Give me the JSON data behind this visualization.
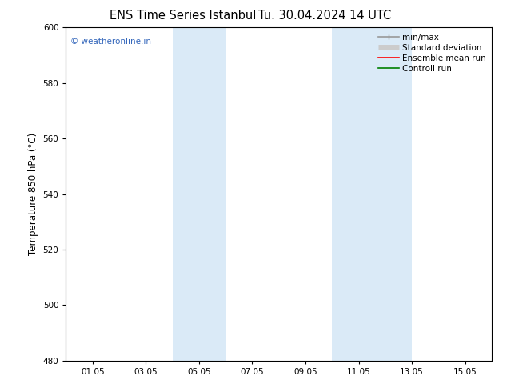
{
  "title_left": "ENS Time Series Istanbul",
  "title_right": "Tu. 30.04.2024 14 UTC",
  "ylabel": "Temperature 850 hPa (°C)",
  "ylim": [
    480,
    600
  ],
  "yticks": [
    480,
    500,
    520,
    540,
    560,
    580,
    600
  ],
  "xtick_labels": [
    "01.05",
    "03.05",
    "05.05",
    "07.05",
    "09.05",
    "11.05",
    "13.05",
    "15.05"
  ],
  "xtick_positions": [
    1,
    3,
    5,
    7,
    9,
    11,
    13,
    15
  ],
  "xlim": [
    0,
    16
  ],
  "shaded_bands": [
    {
      "xmin": 4.0,
      "xmax": 6.0
    },
    {
      "xmin": 10.0,
      "xmax": 13.0
    }
  ],
  "band_color": "#daeaf7",
  "watermark_text": "© weatheronline.in",
  "watermark_color": "#3366bb",
  "legend_entries": [
    {
      "label": "min/max",
      "color": "#999999",
      "lw": 1.2
    },
    {
      "label": "Standard deviation",
      "color": "#cccccc",
      "lw": 5
    },
    {
      "label": "Ensemble mean run",
      "color": "#ff0000",
      "lw": 1.2
    },
    {
      "label": "Controll run",
      "color": "#008000",
      "lw": 1.2
    }
  ],
  "bg_color": "#ffffff",
  "axes_bg_color": "#ffffff",
  "title_fontsize": 10.5,
  "tick_fontsize": 7.5,
  "ylabel_fontsize": 8.5,
  "legend_fontsize": 7.5
}
